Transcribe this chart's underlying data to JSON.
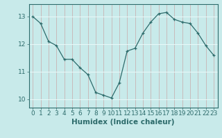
{
  "x": [
    0,
    1,
    2,
    3,
    4,
    5,
    6,
    7,
    8,
    9,
    10,
    11,
    12,
    13,
    14,
    15,
    16,
    17,
    18,
    19,
    20,
    21,
    22,
    23
  ],
  "y": [
    13.0,
    12.75,
    12.1,
    11.95,
    11.45,
    11.45,
    11.15,
    10.9,
    10.25,
    10.15,
    10.05,
    10.6,
    11.75,
    11.85,
    12.4,
    12.8,
    13.1,
    13.15,
    12.9,
    12.8,
    12.75,
    12.4,
    11.95,
    11.6
  ],
  "xlabel": "Humidex (Indice chaleur)",
  "ylim": [
    9.7,
    13.45
  ],
  "xlim": [
    -0.5,
    23.5
  ],
  "yticks": [
    10,
    11,
    12,
    13
  ],
  "xticks": [
    0,
    1,
    2,
    3,
    4,
    5,
    6,
    7,
    8,
    9,
    10,
    11,
    12,
    13,
    14,
    15,
    16,
    17,
    18,
    19,
    20,
    21,
    22,
    23
  ],
  "line_color": "#2d6b6b",
  "marker": "+",
  "bg_color": "#c8eaea",
  "vgrid_color": "#c8a8a8",
  "hgrid_color": "#e8f8f8",
  "axis_color": "#2d6b6b",
  "tick_color": "#2d6b6b",
  "label_color": "#2d6b6b",
  "font_size": 6.5,
  "xlabel_fontsize": 7.5
}
